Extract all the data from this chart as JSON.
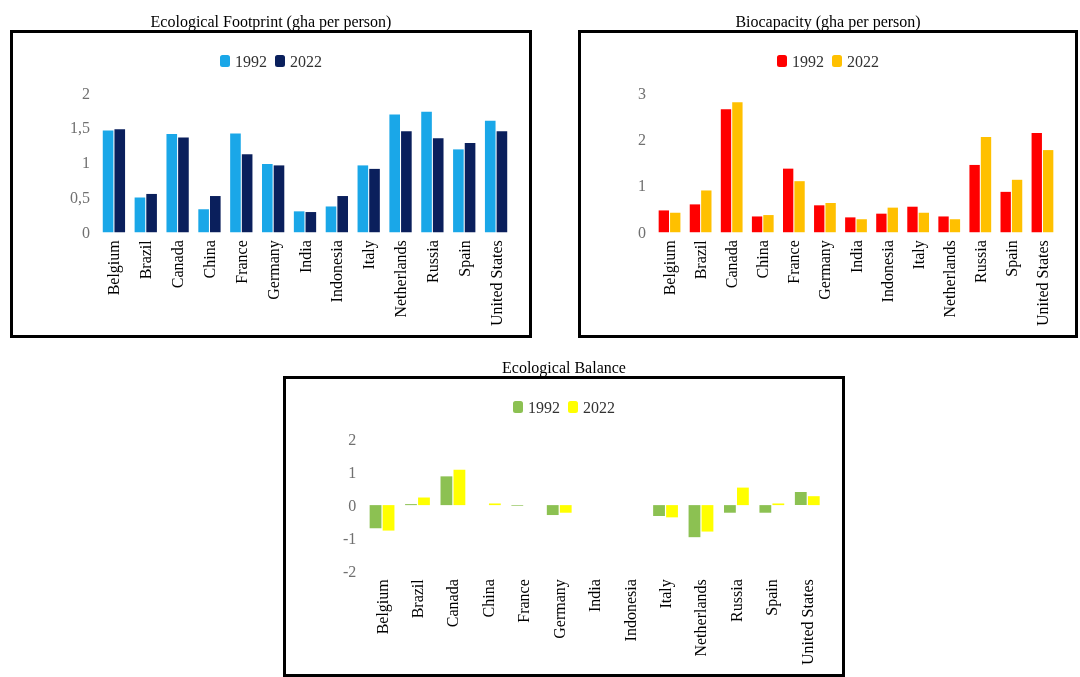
{
  "chart_data": [
    {
      "type": "bar",
      "title": "Ecological Footprint (gha per person)",
      "categories": [
        "Belgium",
        "Brazil",
        "Canada",
        "China",
        "France",
        "Germany",
        "India",
        "Indonesia",
        "Italy",
        "Netherlands",
        "Russia",
        "Spain",
        "United States"
      ],
      "series": [
        {
          "name": "1992",
          "color": "#1aa7e8",
          "values": [
            1.46,
            0.5,
            1.41,
            0.33,
            1.42,
            0.98,
            0.3,
            0.37,
            0.96,
            1.69,
            1.73,
            1.19,
            1.6
          ]
        },
        {
          "name": "2022",
          "color": "#0a1f5c",
          "values": [
            1.48,
            0.55,
            1.36,
            0.52,
            1.12,
            0.96,
            0.29,
            0.52,
            0.91,
            1.45,
            1.35,
            1.28,
            1.45
          ]
        }
      ],
      "ylim": [
        0,
        2
      ],
      "yticks": [
        0,
        {
          "value": 0.5,
          "label": "0,5"
        },
        1,
        {
          "value": 1.5,
          "label": "1,5"
        },
        2
      ],
      "grid": false,
      "legend": "top"
    },
    {
      "type": "bar",
      "title": "Biocapacity (gha per person)",
      "categories": [
        "Belgium",
        "Brazil",
        "Canada",
        "China",
        "France",
        "Germany",
        "India",
        "Indonesia",
        "Italy",
        "Netherlands",
        "Russia",
        "Spain",
        "United States"
      ],
      "series": [
        {
          "name": "1992",
          "color": "#ff0000",
          "values": [
            0.47,
            0.6,
            2.65,
            0.34,
            1.37,
            0.58,
            0.32,
            0.4,
            0.55,
            0.34,
            1.45,
            0.87,
            2.14
          ]
        },
        {
          "name": "2022",
          "color": "#ffc000",
          "values": [
            0.42,
            0.9,
            2.8,
            0.37,
            1.1,
            0.63,
            0.28,
            0.53,
            0.42,
            0.28,
            2.05,
            1.13,
            1.77
          ]
        }
      ],
      "ylim": [
        0,
        3
      ],
      "yticks": [
        0,
        1,
        2,
        3
      ],
      "grid": false,
      "legend": "top"
    },
    {
      "type": "bar",
      "title": "Ecological Balance",
      "categories": [
        "Belgium",
        "Brazil",
        "Canada",
        "China",
        "France",
        "Germany",
        "India",
        "Indonesia",
        "Italy",
        "Netherlands",
        "Russia",
        "Spain",
        "United States"
      ],
      "series": [
        {
          "name": "1992",
          "color": "#8cc152",
          "values": [
            -0.7,
            0.03,
            0.87,
            0,
            -0.02,
            -0.3,
            0,
            0,
            -0.33,
            -0.97,
            -0.23,
            -0.23,
            0.4
          ]
        },
        {
          "name": "2022",
          "color": "#ffff00",
          "values": [
            -0.77,
            0.23,
            1.07,
            0.05,
            0,
            -0.23,
            0,
            0,
            -0.37,
            -0.8,
            0.53,
            0.05,
            0.27
          ]
        }
      ],
      "ylim": [
        -2,
        2
      ],
      "yticks": [
        -2,
        -1,
        0,
        1,
        2
      ],
      "grid": false,
      "legend": "top"
    }
  ]
}
